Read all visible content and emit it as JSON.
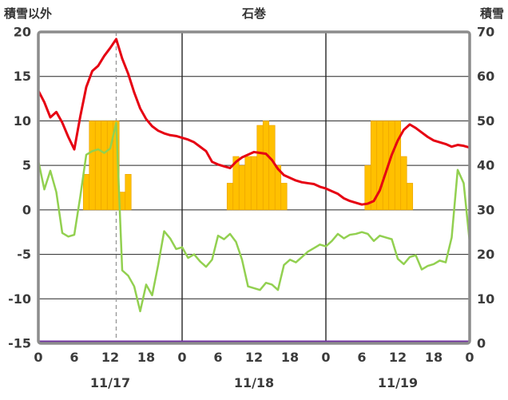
{
  "header": {
    "note": "labels bound from chart_data"
  },
  "chart_data": {
    "type": "line",
    "title": "石巻",
    "ylabel_left": "積雪以外",
    "ylabel_right": "積雪",
    "x_range": [
      0,
      72
    ],
    "left_ylim": [
      -15,
      20
    ],
    "right_ylim": [
      0,
      70
    ],
    "left_ticks": [
      20,
      15,
      10,
      5,
      0,
      -5,
      -10,
      -15
    ],
    "right_ticks": [
      70,
      60,
      50,
      40,
      30,
      20,
      10,
      0
    ],
    "x_ticks": {
      "hours": [
        0,
        6,
        12,
        18,
        24,
        30,
        36,
        42,
        48,
        54,
        60,
        66,
        72
      ],
      "labels": [
        "0",
        "6",
        "12",
        "18",
        "0",
        "6",
        "12",
        "18",
        "0",
        "6",
        "12",
        "18",
        "0"
      ]
    },
    "date_labels": [
      {
        "text": "11/17",
        "hour": 12
      },
      {
        "text": "11/18",
        "hour": 36
      },
      {
        "text": "11/19",
        "hour": 60
      }
    ],
    "day_boundary_hours": [
      24,
      48
    ],
    "current_time_hour": 13,
    "grid": true,
    "colors": {
      "red_line": "#e60012",
      "green_line": "#92d050",
      "bars": "#ffc000",
      "bar_edge": "#e8a000",
      "purple_line": "#7030a0",
      "frame": "#8c8c8c",
      "gridline": "#262626",
      "dashed_line": "#9b9b9b"
    },
    "bars_left_axis": [
      {
        "h": 8,
        "v": 4
      },
      {
        "h": 9,
        "v": 10
      },
      {
        "h": 10,
        "v": 10
      },
      {
        "h": 11,
        "v": 10
      },
      {
        "h": 12,
        "v": 10
      },
      {
        "h": 13,
        "v": 10
      },
      {
        "h": 14,
        "v": 2
      },
      {
        "h": 15,
        "v": 4
      },
      {
        "h": 32,
        "v": 3
      },
      {
        "h": 33,
        "v": 6
      },
      {
        "h": 34,
        "v": 5
      },
      {
        "h": 35,
        "v": 6
      },
      {
        "h": 36,
        "v": 6
      },
      {
        "h": 37,
        "v": 9.5
      },
      {
        "h": 38,
        "v": 10
      },
      {
        "h": 39,
        "v": 9.5
      },
      {
        "h": 40,
        "v": 5
      },
      {
        "h": 41,
        "v": 3
      },
      {
        "h": 55,
        "v": 5
      },
      {
        "h": 56,
        "v": 10
      },
      {
        "h": 57,
        "v": 10
      },
      {
        "h": 58,
        "v": 10
      },
      {
        "h": 59,
        "v": 10
      },
      {
        "h": 60,
        "v": 10
      },
      {
        "h": 61,
        "v": 6
      },
      {
        "h": 62,
        "v": 3
      }
    ],
    "series": [
      {
        "name": "red-line",
        "type": "line",
        "axis": "left",
        "color": "#e60012",
        "width": 3,
        "values": [
          13.4,
          12.1,
          10.4,
          11.0,
          9.8,
          8.2,
          6.8,
          10.5,
          13.8,
          15.6,
          16.2,
          17.3,
          18.2,
          19.2,
          17.0,
          15.3,
          13.2,
          11.4,
          10.2,
          9.4,
          8.9,
          8.6,
          8.4,
          8.3,
          8.1,
          7.9,
          7.6,
          7.1,
          6.6,
          5.4,
          5.1,
          4.9,
          4.7,
          5.4,
          5.9,
          6.2,
          6.5,
          6.4,
          6.3,
          5.6,
          4.6,
          3.9,
          3.6,
          3.3,
          3.1,
          3.0,
          2.9,
          2.6,
          2.4,
          2.1,
          1.8,
          1.3,
          1.0,
          0.8,
          0.6,
          0.7,
          1.0,
          2.2,
          4.2,
          6.2,
          7.8,
          9.0,
          9.6,
          9.2,
          8.7,
          8.2,
          7.8,
          7.6,
          7.4,
          7.1,
          7.3,
          7.2,
          7.0
        ]
      },
      {
        "name": "green-line",
        "type": "line",
        "axis": "left",
        "color": "#92d050",
        "width": 2.5,
        "values": [
          5.5,
          2.3,
          4.4,
          2.0,
          -2.6,
          -3.0,
          -2.8,
          1.5,
          6.2,
          6.6,
          6.8,
          6.4,
          6.9,
          9.8,
          -6.8,
          -7.4,
          -8.6,
          -11.4,
          -8.4,
          -9.6,
          -6.2,
          -2.4,
          -3.2,
          -4.4,
          -4.2,
          -5.4,
          -5.0,
          -5.8,
          -6.4,
          -5.6,
          -2.9,
          -3.3,
          -2.7,
          -3.6,
          -5.6,
          -8.6,
          -8.8,
          -9.0,
          -8.2,
          -8.4,
          -9.0,
          -6.2,
          -5.6,
          -5.9,
          -5.3,
          -4.7,
          -4.3,
          -3.9,
          -4.1,
          -3.5,
          -2.7,
          -3.2,
          -2.8,
          -2.7,
          -2.5,
          -2.7,
          -3.5,
          -2.9,
          -3.1,
          -3.3,
          -5.5,
          -6.1,
          -5.3,
          -5.1,
          -6.7,
          -6.3,
          -6.1,
          -5.7,
          -5.9,
          -3.1,
          4.5,
          3.0,
          -3.6
        ]
      },
      {
        "name": "purple-line-snow",
        "type": "line",
        "axis": "right",
        "color": "#7030a0",
        "width": 2.5,
        "x": [
          0,
          72
        ],
        "values": [
          0,
          0
        ]
      }
    ]
  }
}
